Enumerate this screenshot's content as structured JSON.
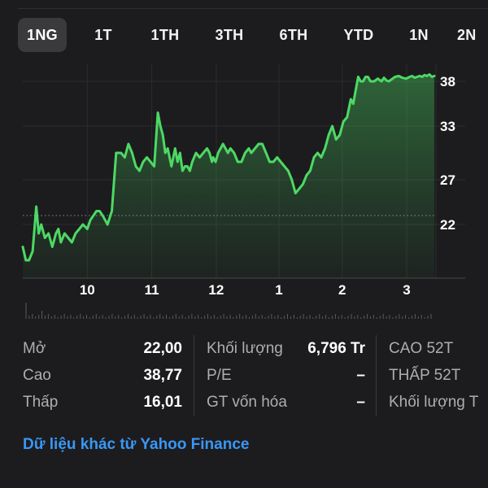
{
  "tabs": [
    {
      "label": "1NG",
      "active": true
    },
    {
      "label": "1T",
      "active": false
    },
    {
      "label": "1TH",
      "active": false
    },
    {
      "label": "3TH",
      "active": false
    },
    {
      "label": "6TH",
      "active": false
    },
    {
      "label": "YTD",
      "active": false
    },
    {
      "label": "1N",
      "active": false
    },
    {
      "label": "2N",
      "active": false
    }
  ],
  "chart_data": {
    "type": "area",
    "line_color": "#4cd964",
    "y_ticks": [
      "38",
      "33",
      "27",
      "22"
    ],
    "y_tick_values": [
      38,
      33,
      27,
      22
    ],
    "x_ticks": [
      "10",
      "11",
      "12",
      "1",
      "2",
      "3"
    ],
    "x_tick_positions": [
      1.05,
      2.1,
      3.15,
      4.17,
      5.2,
      6.25
    ],
    "ylim": [
      16,
      40
    ],
    "xlim": [
      0,
      6.7
    ],
    "reference_line": 23.0,
    "x": [
      0.0,
      0.05,
      0.1,
      0.16,
      0.22,
      0.26,
      0.3,
      0.36,
      0.42,
      0.48,
      0.54,
      0.58,
      0.62,
      0.68,
      0.74,
      0.8,
      0.86,
      0.92,
      0.98,
      1.05,
      1.1,
      1.15,
      1.2,
      1.25,
      1.3,
      1.38,
      1.45,
      1.52,
      1.6,
      1.66,
      1.72,
      1.78,
      1.84,
      1.9,
      1.96,
      2.02,
      2.08,
      2.14,
      2.2,
      2.24,
      2.28,
      2.32,
      2.36,
      2.42,
      2.48,
      2.52,
      2.56,
      2.6,
      2.64,
      2.68,
      2.72,
      2.76,
      2.82,
      2.88,
      2.94,
      3.0,
      3.04,
      3.08,
      3.1,
      3.14,
      3.18,
      3.22,
      3.26,
      3.3,
      3.34,
      3.38,
      3.44,
      3.5,
      3.56,
      3.62,
      3.68,
      3.72,
      3.78,
      3.84,
      3.9,
      3.96,
      4.02,
      4.08,
      4.14,
      4.2,
      4.26,
      4.32,
      4.38,
      4.44,
      4.5,
      4.56,
      4.62,
      4.68,
      4.74,
      4.8,
      4.86,
      4.92,
      4.98,
      5.04,
      5.1,
      5.16,
      5.22,
      5.28,
      5.34,
      5.38,
      5.42,
      5.46,
      5.5,
      5.54,
      5.58,
      5.62,
      5.66,
      5.72,
      5.78,
      5.84,
      5.88,
      5.92,
      5.96,
      6.0,
      6.06,
      6.12,
      6.18,
      6.24,
      6.3,
      6.34,
      6.38,
      6.42,
      6.46,
      6.5,
      6.54,
      6.58,
      6.62,
      6.66,
      6.7
    ],
    "y": [
      19.5,
      18.0,
      18.0,
      19.0,
      24.0,
      21.0,
      22.0,
      20.5,
      21.0,
      19.5,
      21.0,
      21.5,
      20.0,
      21.0,
      20.5,
      20.0,
      21.0,
      21.5,
      22.0,
      21.5,
      22.5,
      23.0,
      23.5,
      23.5,
      23.0,
      22.0,
      23.5,
      30.0,
      30.0,
      29.5,
      31.0,
      30.0,
      28.5,
      28.0,
      29.0,
      29.5,
      29.0,
      28.5,
      34.5,
      33.0,
      32.0,
      30.0,
      30.5,
      28.5,
      30.5,
      29.0,
      30.0,
      28.0,
      28.5,
      28.5,
      28.0,
      29.0,
      30.0,
      29.5,
      30.0,
      30.5,
      30.0,
      29.0,
      29.5,
      29.0,
      30.0,
      30.5,
      31.0,
      30.5,
      30.0,
      30.5,
      30.0,
      29.0,
      29.0,
      30.0,
      30.5,
      30.0,
      30.5,
      31.0,
      31.0,
      30.0,
      29.0,
      29.0,
      29.5,
      29.0,
      28.5,
      28.0,
      27.0,
      25.5,
      26.0,
      26.5,
      27.5,
      28.0,
      29.5,
      30.0,
      29.5,
      30.5,
      32.0,
      33.0,
      31.5,
      32.0,
      33.5,
      34.0,
      36.0,
      35.5,
      37.0,
      38.5,
      38.0,
      38.0,
      38.5,
      38.5,
      38.0,
      38.0,
      38.3,
      38.0,
      38.4,
      38.1,
      38.0,
      38.2,
      38.5,
      38.6,
      38.4,
      38.3,
      38.5,
      38.6,
      38.4,
      38.5,
      38.6,
      38.5,
      38.7,
      38.6,
      38.77,
      38.5,
      38.6
    ]
  },
  "stats": {
    "col1": [
      {
        "label": "Mở",
        "value": "22,00"
      },
      {
        "label": "Cao",
        "value": "38,77"
      },
      {
        "label": "Thấp",
        "value": "16,01"
      }
    ],
    "col2": [
      {
        "label": "Khối lượng",
        "value": "6,796 Tr"
      },
      {
        "label": "P/E",
        "value": "–"
      },
      {
        "label": "GT vốn hóa",
        "value": "–"
      }
    ],
    "col3": [
      {
        "label": "CAO 52T",
        "value": ""
      },
      {
        "label": "THẤP 52T",
        "value": ""
      },
      {
        "label": "Khối lượng T",
        "value": ""
      }
    ]
  },
  "footer": {
    "link_label": "Dữ liệu khác từ Yahoo Finance"
  }
}
